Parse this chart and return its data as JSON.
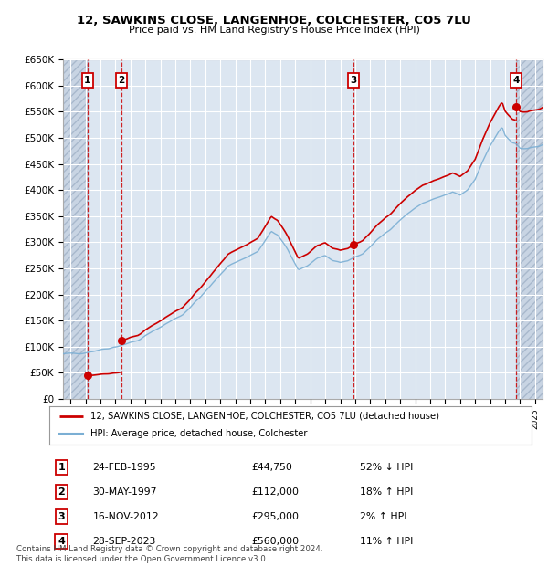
{
  "title": "12, SAWKINS CLOSE, LANGENHOE, COLCHESTER, CO5 7LU",
  "subtitle": "Price paid vs. HM Land Registry's House Price Index (HPI)",
  "ylim": [
    0,
    650000
  ],
  "yticks": [
    0,
    50000,
    100000,
    150000,
    200000,
    250000,
    300000,
    350000,
    400000,
    450000,
    500000,
    550000,
    600000,
    650000
  ],
  "ytick_labels": [
    "£0",
    "£50K",
    "£100K",
    "£150K",
    "£200K",
    "£250K",
    "£300K",
    "£350K",
    "£400K",
    "£450K",
    "£500K",
    "£550K",
    "£600K",
    "£650K"
  ],
  "xlim_min": 1993.5,
  "xlim_max": 2025.5,
  "plot_bg_color": "#dce6f1",
  "grid_color": "#ffffff",
  "transactions": [
    {
      "num": 1,
      "date": "24-FEB-1995",
      "year": 1995.14,
      "price": 44750,
      "pct": "52%",
      "dir": "↓"
    },
    {
      "num": 2,
      "date": "30-MAY-1997",
      "year": 1997.41,
      "price": 112000,
      "pct": "18%",
      "dir": "↑"
    },
    {
      "num": 3,
      "date": "16-NOV-2012",
      "year": 2012.87,
      "price": 295000,
      "pct": "2%",
      "dir": "↑"
    },
    {
      "num": 4,
      "date": "28-SEP-2023",
      "year": 2023.74,
      "price": 560000,
      "pct": "11%",
      "dir": "↑"
    }
  ],
  "legend_line1": "12, SAWKINS CLOSE, LANGENHOE, COLCHESTER, CO5 7LU (detached house)",
  "legend_line2": "HPI: Average price, detached house, Colchester",
  "footer": "Contains HM Land Registry data © Crown copyright and database right 2024.\nThis data is licensed under the Open Government Licence v3.0.",
  "line_red_color": "#cc0000",
  "line_blue_color": "#7bafd4"
}
